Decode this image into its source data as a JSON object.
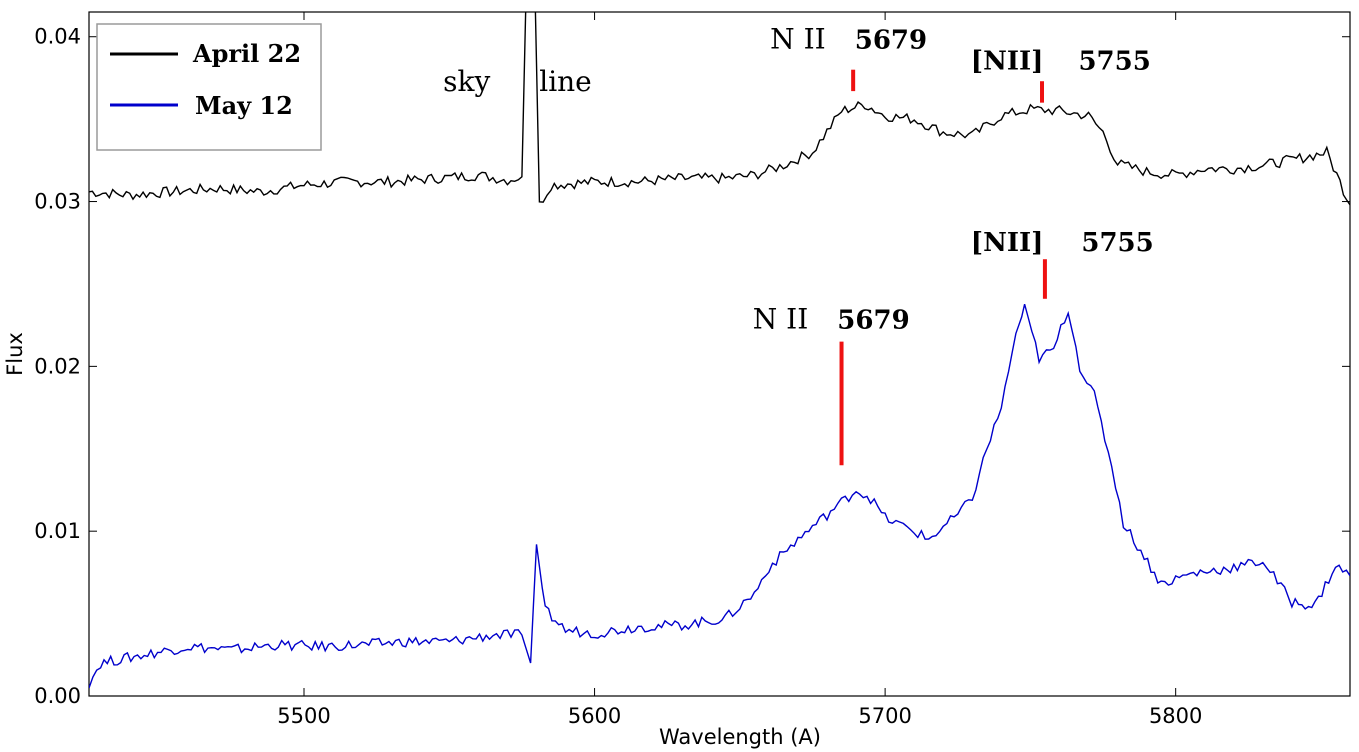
{
  "chart_data": {
    "type": "line",
    "title": "",
    "xlabel": "Wavelength (A)",
    "ylabel": "Flux",
    "xlim": [
      5426,
      5860
    ],
    "ylim": [
      0.0,
      0.0415
    ],
    "xticks": [
      5500,
      5600,
      5700,
      5800
    ],
    "xtick_labels": [
      "5500",
      "5600",
      "5700",
      "5800"
    ],
    "yticks": [
      0.0,
      0.01,
      0.02,
      0.03,
      0.04
    ],
    "ytick_labels": [
      "0.00",
      "0.01",
      "0.02",
      "0.03",
      "0.04"
    ],
    "grid": false,
    "legend_position": "top-left",
    "series": [
      {
        "name": "April 22",
        "color": "#000000",
        "points": [
          [
            5426,
            0.0306
          ],
          [
            5440,
            0.0304
          ],
          [
            5455,
            0.0306
          ],
          [
            5470,
            0.0308
          ],
          [
            5485,
            0.0306
          ],
          [
            5500,
            0.031
          ],
          [
            5515,
            0.0312
          ],
          [
            5530,
            0.0312
          ],
          [
            5545,
            0.0314
          ],
          [
            5560,
            0.0316
          ],
          [
            5570,
            0.0313
          ],
          [
            5575,
            0.0315
          ],
          [
            5577,
            0.047
          ],
          [
            5579,
            0.047
          ],
          [
            5581,
            0.0298
          ],
          [
            5585,
            0.031
          ],
          [
            5600,
            0.0312
          ],
          [
            5615,
            0.0312
          ],
          [
            5630,
            0.0314
          ],
          [
            5645,
            0.0314
          ],
          [
            5655,
            0.0316
          ],
          [
            5665,
            0.0322
          ],
          [
            5675,
            0.033
          ],
          [
            5685,
            0.0355
          ],
          [
            5693,
            0.0359
          ],
          [
            5700,
            0.0352
          ],
          [
            5710,
            0.035
          ],
          [
            5720,
            0.0342
          ],
          [
            5730,
            0.034
          ],
          [
            5740,
            0.0352
          ],
          [
            5750,
            0.0356
          ],
          [
            5760,
            0.0355
          ],
          [
            5770,
            0.0352
          ],
          [
            5775,
            0.0342
          ],
          [
            5780,
            0.0323
          ],
          [
            5790,
            0.0318
          ],
          [
            5800,
            0.0316
          ],
          [
            5810,
            0.032
          ],
          [
            5820,
            0.032
          ],
          [
            5830,
            0.0322
          ],
          [
            5845,
            0.0327
          ],
          [
            5852,
            0.033
          ],
          [
            5860,
            0.0298
          ]
        ]
      },
      {
        "name": "May 12",
        "color": "#0000cc",
        "points": [
          [
            5426,
            0.0008
          ],
          [
            5430,
            0.002
          ],
          [
            5445,
            0.0025
          ],
          [
            5460,
            0.003
          ],
          [
            5475,
            0.0028
          ],
          [
            5490,
            0.0031
          ],
          [
            5505,
            0.003
          ],
          [
            5520,
            0.0031
          ],
          [
            5535,
            0.0033
          ],
          [
            5550,
            0.0033
          ],
          [
            5565,
            0.0037
          ],
          [
            5575,
            0.0037
          ],
          [
            5578,
            0.002
          ],
          [
            5580,
            0.0092
          ],
          [
            5583,
            0.0052
          ],
          [
            5590,
            0.004
          ],
          [
            5600,
            0.0038
          ],
          [
            5615,
            0.0042
          ],
          [
            5630,
            0.0043
          ],
          [
            5645,
            0.0047
          ],
          [
            5655,
            0.0062
          ],
          [
            5660,
            0.0078
          ],
          [
            5670,
            0.0095
          ],
          [
            5680,
            0.011
          ],
          [
            5690,
            0.0125
          ],
          [
            5695,
            0.012
          ],
          [
            5700,
            0.0108
          ],
          [
            5710,
            0.01
          ],
          [
            5715,
            0.0095
          ],
          [
            5725,
            0.011
          ],
          [
            5730,
            0.012
          ],
          [
            5735,
            0.015
          ],
          [
            5740,
            0.0175
          ],
          [
            5745,
            0.022
          ],
          [
            5748,
            0.0235
          ],
          [
            5753,
            0.0205
          ],
          [
            5758,
            0.021
          ],
          [
            5763,
            0.0235
          ],
          [
            5767,
            0.02
          ],
          [
            5772,
            0.0182
          ],
          [
            5778,
            0.014
          ],
          [
            5782,
            0.0105
          ],
          [
            5788,
            0.0088
          ],
          [
            5795,
            0.0068
          ],
          [
            5805,
            0.0074
          ],
          [
            5820,
            0.0078
          ],
          [
            5830,
            0.0082
          ],
          [
            5840,
            0.0057
          ],
          [
            5848,
            0.0055
          ],
          [
            5855,
            0.0079
          ],
          [
            5860,
            0.0073
          ]
        ]
      }
    ],
    "annotations": [
      {
        "text": "sky",
        "x": 5556,
        "y": 0.0367
      },
      {
        "text": "line",
        "x": 5590,
        "y": 0.0367
      },
      {
        "text": "N II",
        "x": 5670,
        "y": 0.0393
      },
      {
        "text": "5679",
        "x": 5702,
        "y": 0.0393
      },
      {
        "text": "[NII]",
        "x": 5742,
        "y": 0.038
      },
      {
        "text": "5755",
        "x": 5779,
        "y": 0.038
      },
      {
        "text": "N II",
        "x": 5664,
        "y": 0.0223
      },
      {
        "text": "5679",
        "x": 5696,
        "y": 0.0223
      },
      {
        "text": "[NII]",
        "x": 5742,
        "y": 0.027
      },
      {
        "text": "5755",
        "x": 5780,
        "y": 0.027
      }
    ],
    "marker_lines": [
      {
        "x": 5689,
        "y1": 0.0367,
        "y2": 0.038,
        "color": "#ee1111"
      },
      {
        "x": 5754,
        "y1": 0.036,
        "y2": 0.0373,
        "color": "#ee1111"
      },
      {
        "x": 5685,
        "y1": 0.014,
        "y2": 0.0215,
        "color": "#ee1111"
      },
      {
        "x": 5755,
        "y1": 0.0241,
        "y2": 0.0265,
        "color": "#ee1111"
      }
    ]
  }
}
